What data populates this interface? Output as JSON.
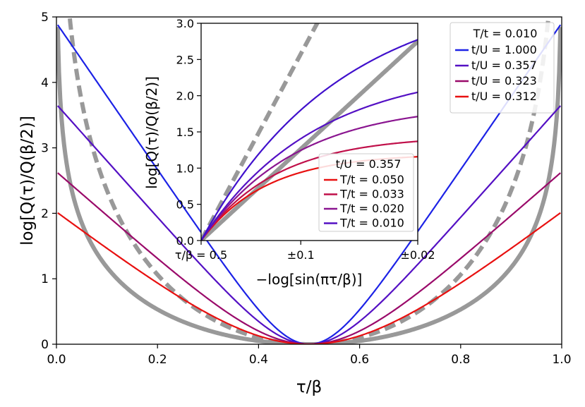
{
  "chart_data": [
    {
      "type": "line",
      "panel": "main",
      "xlabel": "τ/β",
      "ylabel": "log[Q(τ)/Q(β/2)]",
      "xlim": [
        0.0,
        1.0
      ],
      "ylim": [
        0,
        5
      ],
      "xticks": [
        "0.0",
        "0.2",
        "0.4",
        "0.6",
        "0.8",
        "1.0"
      ],
      "yticks": [
        "0",
        "1",
        "2",
        "3",
        "4",
        "5"
      ],
      "legend": {
        "title": "T/t = 0.010",
        "position": "top-right",
        "entries": [
          "t/U = 1.000",
          "t/U = 0.357",
          "t/U = 0.323",
          "t/U = 0.312"
        ]
      },
      "series": [
        {
          "name": "t/U = 1.000",
          "color": "#1c22e6",
          "model": "cosh",
          "a": 11.2,
          "s": 1
        },
        {
          "name": "t/U = 0.357",
          "color": "#5410c4",
          "model": "cosh",
          "a": 9.1,
          "s": 0.95
        },
        {
          "name": "t/U = 0.323",
          "color": "#9a0a6a",
          "model": "cosh",
          "a": 6.4,
          "s": 1.05
        },
        {
          "name": "t/U = 0.312",
          "color": "#e81010",
          "model": "cosh",
          "a": 4.6,
          "s": 1.25
        },
        {
          "name": "reference (dashed)",
          "color": "#999999",
          "model": "logsin",
          "c": 2.0,
          "dashed": true
        },
        {
          "name": "reference (solid)",
          "color": "#999999",
          "model": "logsin",
          "c": 1.0,
          "dashed": false
        }
      ]
    },
    {
      "type": "line",
      "panel": "inset",
      "xlabel": "−log[sin(πτ/β)]",
      "ylabel": "log[Q(τ)/Q(β/2)]",
      "xlim": [
        0.0,
        1.0
      ],
      "ylim": [
        0.0,
        3.0
      ],
      "xticks": [
        "τ/β = 0.5",
        "±0.1",
        "±0.02"
      ],
      "xtick_positions": [
        0.0,
        0.46,
        1.0
      ],
      "yticks": [
        "0.0",
        "0.5",
        "1.0",
        "1.5",
        "2.0",
        "2.5",
        "3.0"
      ],
      "legend": {
        "title": "t/U = 0.357",
        "position": "lower-right",
        "entries": [
          "T/t = 0.050",
          "T/t = 0.033",
          "T/t = 0.020",
          "T/t = 0.010"
        ]
      },
      "series": [
        {
          "name": "T/t = 0.050",
          "color": "#e81010",
          "model": "sat",
          "k": 4.0,
          "b": 1.2
        },
        {
          "name": "T/t = 0.033",
          "color": "#c0104a",
          "model": "sat",
          "k": 4.2,
          "b": 1.45
        },
        {
          "name": "T/t = 0.020",
          "color": "#8a1590",
          "model": "sat",
          "k": 4.4,
          "b": 1.9
        },
        {
          "name": "T/t = 0.010",
          "color": "#5410c4",
          "model": "sat",
          "k": 4.6,
          "b": 2.4
        },
        {
          "name": "extra (no legend)",
          "color": "#4010cc",
          "model": "sat",
          "k": 5.5,
          "b": 3.5
        },
        {
          "name": "reference (dashed)",
          "color": "#999999",
          "model": "linear",
          "m": 5.6,
          "dashed": true
        },
        {
          "name": "reference (solid)",
          "color": "#999999",
          "model": "linear",
          "m": 2.75,
          "dashed": false
        }
      ]
    }
  ]
}
